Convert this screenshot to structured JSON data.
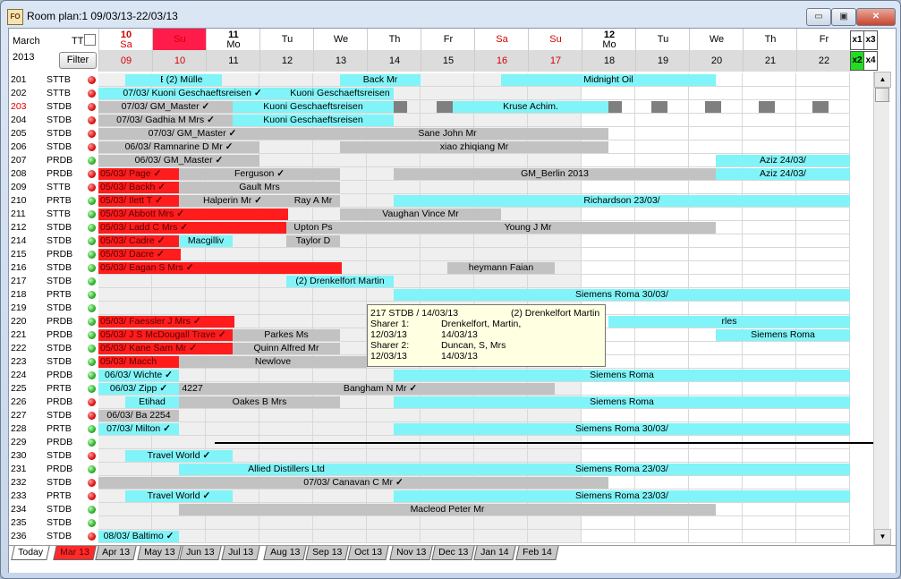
{
  "window": {
    "title": "Room plan:1 09/03/13-22/03/13",
    "app_icon_text": "FO",
    "min_symbol": "▭",
    "max_symbol": "▣",
    "close_symbol": "✕"
  },
  "header": {
    "month": "March",
    "year": "2013",
    "tt_label": "TT",
    "filter_label": "Filter",
    "days": [
      {
        "top": "10",
        "top2": "Sa",
        "num": "09",
        "weekend": true,
        "bold": true,
        "selected": false
      },
      {
        "top": "Su",
        "top2": "",
        "num": "10",
        "weekend": true,
        "bold": false,
        "selected": true
      },
      {
        "top": "11",
        "top2": "Mo",
        "num": "11",
        "weekend": false,
        "bold": true,
        "selected": false
      },
      {
        "top": "Tu",
        "top2": "",
        "num": "12",
        "weekend": false,
        "bold": false,
        "selected": false
      },
      {
        "top": "We",
        "top2": "",
        "num": "13",
        "weekend": false,
        "bold": false,
        "selected": false
      },
      {
        "top": "Th",
        "top2": "",
        "num": "14",
        "weekend": false,
        "bold": false,
        "selected": false
      },
      {
        "top": "Fr",
        "top2": "",
        "num": "15",
        "weekend": false,
        "bold": false,
        "selected": false
      },
      {
        "top": "Sa",
        "top2": "",
        "num": "16",
        "weekend": true,
        "bold": false,
        "selected": false
      },
      {
        "top": "Su",
        "top2": "",
        "num": "17",
        "weekend": true,
        "bold": false,
        "selected": false
      },
      {
        "top": "12",
        "top2": "Mo",
        "num": "18",
        "weekend": false,
        "bold": true,
        "selected": false
      },
      {
        "top": "Tu",
        "top2": "",
        "num": "19",
        "weekend": false,
        "bold": false,
        "selected": false
      },
      {
        "top": "We",
        "top2": "",
        "num": "20",
        "weekend": false,
        "bold": false,
        "selected": false
      },
      {
        "top": "Th",
        "top2": "",
        "num": "21",
        "weekend": false,
        "bold": false,
        "selected": false
      },
      {
        "top": "Fr",
        "top2": "",
        "num": "22",
        "weekend": false,
        "bold": false,
        "selected": false
      }
    ],
    "zoom": [
      "x1",
      "x3",
      "x2",
      "x4"
    ]
  },
  "colors": {
    "cyan": "#80f4f8",
    "grey": "#c2c2c2",
    "red": "#ff1c1c",
    "dark": "#7f7f7f",
    "weekend": "#d40000",
    "selected": "#ff1c4a"
  },
  "rooms": [
    {
      "no": "201",
      "type": "STTB",
      "status": "red",
      "bars": [
        {
          "s": 0.5,
          "e": 2.3,
          "c": "c",
          "t": "Etihad"
        },
        {
          "s": 1.2,
          "e": 2.0,
          "c": "c",
          "t": "(2) Mülle"
        },
        {
          "s": 4.5,
          "e": 6.0,
          "c": "c",
          "t": "Back Mr"
        },
        {
          "s": 7.5,
          "e": 11.5,
          "c": "c",
          "t": "Midnight Oil"
        }
      ]
    },
    {
      "no": "202",
      "type": "STTB",
      "status": "red",
      "bars": [
        {
          "s": 0,
          "e": 3.5,
          "c": "c",
          "t": "07/03/   Kuoni Geschaeftsreisen",
          "tick": true
        },
        {
          "s": 3.5,
          "e": 5.5,
          "c": "c",
          "t": "Kuoni Geschaeftsreisen"
        }
      ]
    },
    {
      "no": "203",
      "type": "STDB",
      "status": "red",
      "red_no": true,
      "bars": [
        {
          "s": 0,
          "e": 2.5,
          "c": "gr",
          "t": "07/03/       GM_Master",
          "tick": true
        },
        {
          "s": 2.5,
          "e": 5.5,
          "c": "c",
          "t": "Kuoni Geschaeftsreisen"
        },
        {
          "s": 5.5,
          "e": 5.75,
          "c": "dk",
          "t": ""
        },
        {
          "s": 6.3,
          "e": 6.6,
          "c": "dk",
          "t": ""
        },
        {
          "s": 6.6,
          "e": 9.5,
          "c": "c",
          "t": "Kruse Achim."
        },
        {
          "s": 9.5,
          "e": 9.75,
          "c": "dk",
          "t": ""
        },
        {
          "s": 10.3,
          "e": 10.6,
          "c": "dk",
          "t": ""
        },
        {
          "s": 11.3,
          "e": 11.6,
          "c": "dk",
          "t": ""
        },
        {
          "s": 12.3,
          "e": 12.6,
          "c": "dk",
          "t": ""
        },
        {
          "s": 13.3,
          "e": 13.6,
          "c": "dk",
          "t": ""
        }
      ]
    },
    {
      "no": "204",
      "type": "STDB",
      "status": "red",
      "bars": [
        {
          "s": 0,
          "e": 2.5,
          "c": "gr",
          "t": "07/03/      Gadhia M Mrs",
          "tick": true
        },
        {
          "s": 2.5,
          "e": 5.5,
          "c": "c",
          "t": "Kuoni Geschaeftsreisen"
        }
      ]
    },
    {
      "no": "205",
      "type": "STDB",
      "status": "red",
      "bars": [
        {
          "s": 0,
          "e": 3.5,
          "c": "gr",
          "t": "07/03/          GM_Master",
          "tick": true
        },
        {
          "s": 3.5,
          "e": 9.5,
          "c": "gr",
          "t": "Sane John Mr"
        }
      ]
    },
    {
      "no": "206",
      "type": "STDB",
      "status": "red",
      "bars": [
        {
          "s": 0,
          "e": 3.0,
          "c": "gr",
          "t": "06/03/      Ramnarine D Mr",
          "tick": true
        },
        {
          "s": 4.5,
          "e": 9.5,
          "c": "gr",
          "t": "xiao zhiqiang Mr"
        }
      ]
    },
    {
      "no": "207",
      "type": "PRDB",
      "status": "green",
      "bars": [
        {
          "s": 0,
          "e": 3.0,
          "c": "gr",
          "t": "06/03/          GM_Master",
          "tick": true
        },
        {
          "s": 11.5,
          "e": 14.0,
          "c": "c",
          "t": "Aziz                    24/03/"
        }
      ]
    },
    {
      "no": "208",
      "type": "PRDB",
      "status": "red",
      "bars": [
        {
          "s": 0,
          "e": 1.5,
          "c": "rd",
          "t": "05/03/  Page",
          "tick": true
        },
        {
          "s": 1.5,
          "e": 4.5,
          "c": "gr",
          "t": "Ferguson",
          "tick": true
        },
        {
          "s": 5.5,
          "e": 11.5,
          "c": "gr",
          "t": "GM_Berlin 2013"
        },
        {
          "s": 11.5,
          "e": 14.0,
          "c": "c",
          "t": "Aziz                    24/03/"
        }
      ]
    },
    {
      "no": "209",
      "type": "STTB",
      "status": "red",
      "bars": [
        {
          "s": 0,
          "e": 1.5,
          "c": "rd",
          "t": "05/03/  Backh",
          "tick": true
        },
        {
          "s": 1.5,
          "e": 4.5,
          "c": "gr",
          "t": "Gault Mrs"
        }
      ]
    },
    {
      "no": "210",
      "type": "PRTB",
      "status": "green",
      "bars": [
        {
          "s": 0,
          "e": 1.5,
          "c": "rd",
          "t": "05/03/  Ilett T",
          "tick": true
        },
        {
          "s": 1.5,
          "e": 3.5,
          "c": "gr",
          "t": "Halperin Mr",
          "tick": true
        },
        {
          "s": 3.5,
          "e": 4.5,
          "c": "gr",
          "t": "Ray A Mr"
        },
        {
          "s": 5.5,
          "e": 14.0,
          "c": "c",
          "t": "Richardson                                        23/03/"
        }
      ]
    },
    {
      "no": "211",
      "type": "STTB",
      "status": "green",
      "bars": [
        {
          "s": 0,
          "e": 3.5,
          "c": "rd",
          "t": "05/03/          Abbott Mrs",
          "tick": true
        },
        {
          "s": 4.5,
          "e": 7.5,
          "c": "gr",
          "t": "Vaughan Vince Mr"
        }
      ]
    },
    {
      "no": "212",
      "type": "STDB",
      "status": "green",
      "bars": [
        {
          "s": 0,
          "e": 3.5,
          "c": "rd",
          "t": "05/03/        Ladd C Mrs",
          "tick": true
        },
        {
          "s": 3.5,
          "e": 4.5,
          "c": "gr",
          "t": "Upton Ps"
        },
        {
          "s": 4.5,
          "e": 11.5,
          "c": "gr",
          "t": "Young J Mr"
        }
      ]
    },
    {
      "no": "214",
      "type": "STDB",
      "status": "green",
      "bars": [
        {
          "s": 0,
          "e": 1.5,
          "c": "rd",
          "t": "05/03/  Cadre",
          "tick": true
        },
        {
          "s": 1.5,
          "e": 2.5,
          "c": "c",
          "t": "Macgilliv"
        },
        {
          "s": 3.5,
          "e": 4.5,
          "c": "gr",
          "t": "Taylor D"
        }
      ]
    },
    {
      "no": "215",
      "type": "PRDB",
      "status": "green",
      "bars": [
        {
          "s": 0,
          "e": 1.5,
          "c": "rd",
          "t": "05/03/  Dacre",
          "tick": true
        }
      ]
    },
    {
      "no": "216",
      "type": "STDB",
      "status": "green",
      "bars": [
        {
          "s": 0,
          "e": 4.5,
          "c": "rd",
          "t": "05/03/                    Eagan S Mrs",
          "tick": true
        },
        {
          "s": 6.5,
          "e": 8.5,
          "c": "gr",
          "t": "heymann Faian"
        }
      ]
    },
    {
      "no": "217",
      "type": "STDB",
      "status": "green",
      "bars": [
        {
          "s": 3.5,
          "e": 5.5,
          "c": "c",
          "t": "(2) Drenkelfort Martin"
        }
      ]
    },
    {
      "no": "218",
      "type": "PRTB",
      "status": "green",
      "bars": [
        {
          "s": 5.5,
          "e": 14.0,
          "c": "c",
          "t": "Siemens Roma                                     30/03/"
        }
      ]
    },
    {
      "no": "219",
      "type": "STDB",
      "status": "green",
      "bars": []
    },
    {
      "no": "220",
      "type": "PRDB",
      "status": "green",
      "bars": [
        {
          "s": 0,
          "e": 2.5,
          "c": "rd",
          "t": "05/03/    Faessler J Mrs",
          "tick": true
        },
        {
          "s": 9.5,
          "e": 14.0,
          "c": "c",
          "t": "rles"
        }
      ]
    },
    {
      "no": "221",
      "type": "PRDB",
      "status": "green",
      "bars": [
        {
          "s": 0,
          "e": 2.5,
          "c": "rd",
          "t": "05/03/  J S McDougall Trave",
          "tick": true
        },
        {
          "s": 2.5,
          "e": 4.5,
          "c": "gr",
          "t": "Parkes Ms"
        },
        {
          "s": 11.5,
          "e": 14.0,
          "c": "c",
          "t": "Siemens Roma"
        }
      ]
    },
    {
      "no": "222",
      "type": "STDB",
      "status": "green",
      "bars": [
        {
          "s": 0,
          "e": 2.5,
          "c": "rd",
          "t": "05/03/     Kane Sam Mr",
          "tick": true
        },
        {
          "s": 2.5,
          "e": 4.5,
          "c": "gr",
          "t": "Quinn Alfred Mr"
        }
      ]
    },
    {
      "no": "223",
      "type": "STDB",
      "status": "green",
      "bars": [
        {
          "s": 0,
          "e": 1.5,
          "c": "rd",
          "t": "05/03/  Macch"
        },
        {
          "s": 1.5,
          "e": 5.0,
          "c": "gr",
          "t": "                          Newlove"
        }
      ]
    },
    {
      "no": "224",
      "type": "PRDB",
      "status": "green",
      "bars": [
        {
          "s": 0,
          "e": 1.5,
          "c": "c",
          "t": "06/03/  Wichte",
          "tick": true
        },
        {
          "s": 5.5,
          "e": 14.0,
          "c": "c",
          "t": "Siemens Roma"
        }
      ]
    },
    {
      "no": "225",
      "type": "PRTB",
      "status": "green",
      "bars": [
        {
          "s": 0,
          "e": 1.5,
          "c": "c",
          "t": "06/03/   Zipp",
          "tick": true
        },
        {
          "s": 1.5,
          "e": 2.0,
          "c": "gr",
          "t": "4227"
        },
        {
          "s": 2.0,
          "e": 8.5,
          "c": "gr",
          "t": "Bangham N Mr",
          "tick": true
        }
      ]
    },
    {
      "no": "226",
      "type": "PRDB",
      "status": "red",
      "bars": [
        {
          "s": 0.5,
          "e": 1.5,
          "c": "c",
          "t": "Etihad"
        },
        {
          "s": 1.5,
          "e": 4.5,
          "c": "gr",
          "t": "Oakes B Mrs"
        },
        {
          "s": 5.5,
          "e": 14.0,
          "c": "c",
          "t": "Siemens Roma"
        }
      ]
    },
    {
      "no": "227",
      "type": "STDB",
      "status": "red",
      "bars": [
        {
          "s": 0,
          "e": 1.5,
          "c": "gr",
          "t": "06/03/  Ba 2254"
        }
      ]
    },
    {
      "no": "228",
      "type": "PRTB",
      "status": "green",
      "bars": [
        {
          "s": 0,
          "e": 1.5,
          "c": "c",
          "t": "07/03/  Milton",
          "tick": true
        },
        {
          "s": 5.5,
          "e": 14.0,
          "c": "c",
          "t": "Siemens Roma                                     30/03/"
        }
      ]
    },
    {
      "no": "229",
      "type": "PRDB",
      "status": "green",
      "bars": [],
      "strike": true
    },
    {
      "no": "230",
      "type": "STDB",
      "status": "red",
      "bars": [
        {
          "s": 0.5,
          "e": 2.5,
          "c": "c",
          "t": "Travel World",
          "tick": true
        }
      ]
    },
    {
      "no": "231",
      "type": "PRDB",
      "status": "green",
      "bars": [
        {
          "s": 1.5,
          "e": 5.5,
          "c": "c",
          "t": "Allied Distillers Ltd"
        },
        {
          "s": 5.5,
          "e": 14.0,
          "c": "c",
          "t": "Siemens Roma                                     23/03/"
        }
      ]
    },
    {
      "no": "232",
      "type": "STDB",
      "status": "red",
      "bars": [
        {
          "s": 0,
          "e": 9.5,
          "c": "gr",
          "t": "07/03/                                              Canavan C Mr",
          "tick": true
        }
      ]
    },
    {
      "no": "233",
      "type": "PRTB",
      "status": "red",
      "bars": [
        {
          "s": 0.5,
          "e": 2.5,
          "c": "c",
          "t": "Travel World",
          "tick": true
        },
        {
          "s": 5.5,
          "e": 14.0,
          "c": "c",
          "t": "Siemens Roma                                     23/03/"
        }
      ]
    },
    {
      "no": "234",
      "type": "STDB",
      "status": "green",
      "bars": [
        {
          "s": 1.5,
          "e": 11.5,
          "c": "gr",
          "t": "Macleod Peter Mr"
        }
      ]
    },
    {
      "no": "235",
      "type": "STDB",
      "status": "green",
      "bars": []
    },
    {
      "no": "236",
      "type": "STDB",
      "status": "red",
      "bars": [
        {
          "s": 0,
          "e": 1.5,
          "c": "c",
          "t": "08/03/  Baltimo",
          "tick": true
        }
      ]
    }
  ],
  "tooltip": {
    "head": "217 STDB / 14/03/13",
    "head_right": "(2) Drenkelfort Martin",
    "sharer1_label": "Sharer 1:",
    "sharer1_name": "Drenkelfort, Martin,",
    "sharer1_from": "12/03/13",
    "sharer1_to": "14/03/13",
    "sharer2_label": "Sharer 2:",
    "sharer2_name": "Duncan, S, Mrs",
    "sharer2_from": "12/03/13",
    "sharer2_to": "14/03/13"
  },
  "tabs": [
    {
      "label": "Today",
      "kind": "today"
    },
    {
      "label": "Mar 13",
      "kind": "cur"
    },
    {
      "label": "Apr 13",
      "kind": ""
    },
    {
      "label": "May 13",
      "kind": ""
    },
    {
      "label": "Jun 13",
      "kind": ""
    },
    {
      "label": "Jul 13",
      "kind": ""
    },
    {
      "label": "Aug 13",
      "kind": ""
    },
    {
      "label": "Sep 13",
      "kind": ""
    },
    {
      "label": "Oct 13",
      "kind": ""
    },
    {
      "label": "Nov 13",
      "kind": ""
    },
    {
      "label": "Dec 13",
      "kind": ""
    },
    {
      "label": "Jan 14",
      "kind": ""
    },
    {
      "label": "Feb 14",
      "kind": ""
    }
  ]
}
